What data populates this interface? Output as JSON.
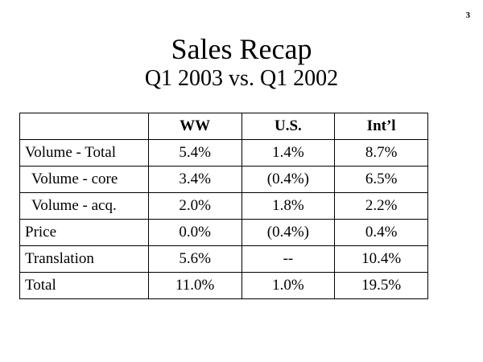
{
  "page_number": "3",
  "title": "Sales Recap",
  "subtitle": "Q1 2003 vs. Q1 2002",
  "table": {
    "headers": [
      "",
      "WW",
      "U.S.",
      "Int’l"
    ],
    "rows": [
      {
        "label": "Volume - Total",
        "indent": false,
        "values": [
          "5.4%",
          "1.4%",
          "8.7%"
        ]
      },
      {
        "label": "Volume - core",
        "indent": true,
        "values": [
          "3.4%",
          "(0.4%)",
          "6.5%"
        ]
      },
      {
        "label": "Volume - acq.",
        "indent": true,
        "values": [
          "2.0%",
          "1.8%",
          "2.2%"
        ]
      },
      {
        "label": "Price",
        "indent": false,
        "values": [
          "0.0%",
          "(0.4%)",
          "0.4%"
        ]
      },
      {
        "label": "Translation",
        "indent": false,
        "values": [
          "5.6%",
          "--",
          "10.4%"
        ]
      },
      {
        "label": "Total",
        "indent": false,
        "values": [
          "11.0%",
          "1.0%",
          "19.5%"
        ]
      }
    ]
  }
}
